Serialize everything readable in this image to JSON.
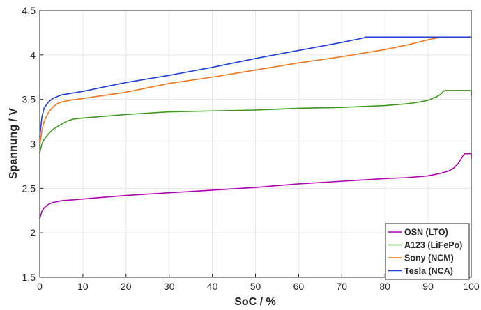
{
  "chart_data": {
    "type": "line",
    "xlabel": "SoC / %",
    "ylabel": "Spannung / V",
    "xlim": [
      0,
      100
    ],
    "ylim": [
      1.5,
      4.5
    ],
    "xticks": [
      "0",
      "10",
      "20",
      "30",
      "40",
      "50",
      "60",
      "70",
      "80",
      "90",
      "100"
    ],
    "yticks": [
      "1.5",
      "2",
      "2.5",
      "3",
      "3.5",
      "4",
      "4.5"
    ],
    "grid": true,
    "legend_position": "bottom-right",
    "series": [
      {
        "name": "OSN (LTO)",
        "color": "#b300b3",
        "x": [
          0,
          0.5,
          1,
          2,
          3,
          5,
          10,
          20,
          30,
          40,
          50,
          60,
          70,
          80,
          85,
          90,
          93,
          95,
          96,
          97,
          98,
          98.5,
          99.5,
          99.8,
          100,
          100
        ],
        "y": [
          2.16,
          2.24,
          2.28,
          2.32,
          2.34,
          2.36,
          2.38,
          2.42,
          2.45,
          2.48,
          2.51,
          2.55,
          2.58,
          2.61,
          2.62,
          2.64,
          2.67,
          2.7,
          2.73,
          2.78,
          2.86,
          2.89,
          2.89,
          2.89,
          2.89,
          2.84
        ]
      },
      {
        "name": "A123 (LiFePo)",
        "color": "#3a9a1a",
        "x": [
          0,
          0.5,
          1,
          2,
          3,
          5,
          6.5,
          8,
          10,
          20,
          30,
          40,
          50,
          60,
          70,
          80,
          85,
          88,
          90,
          92,
          93,
          93.5,
          94,
          98,
          99.5,
          100,
          100
        ],
        "y": [
          2.9,
          3.0,
          3.05,
          3.11,
          3.16,
          3.22,
          3.26,
          3.28,
          3.29,
          3.33,
          3.36,
          3.37,
          3.38,
          3.4,
          3.41,
          3.43,
          3.45,
          3.47,
          3.49,
          3.53,
          3.56,
          3.59,
          3.6,
          3.6,
          3.6,
          3.6,
          3.54
        ]
      },
      {
        "name": "Sony (NCM)",
        "color": "#f0761a",
        "x": [
          0,
          0.5,
          1,
          2,
          3,
          4,
          5,
          7,
          10,
          20,
          30,
          40,
          50,
          60,
          70,
          80,
          85,
          90,
          92,
          93,
          100
        ],
        "y": [
          2.98,
          3.15,
          3.25,
          3.35,
          3.41,
          3.45,
          3.47,
          3.49,
          3.51,
          3.58,
          3.68,
          3.75,
          3.83,
          3.91,
          3.98,
          4.06,
          4.11,
          4.17,
          4.19,
          4.2,
          4.2
        ]
      },
      {
        "name": "Tesla (NCA)",
        "color": "#1f3fd6",
        "x": [
          0,
          0.5,
          1,
          2,
          3,
          4,
          5,
          10,
          20,
          30,
          40,
          50,
          60,
          70,
          75,
          75.5,
          100
        ],
        "y": [
          3.08,
          3.3,
          3.4,
          3.47,
          3.51,
          3.53,
          3.55,
          3.59,
          3.69,
          3.77,
          3.86,
          3.96,
          4.05,
          4.14,
          4.19,
          4.2,
          4.2
        ]
      }
    ]
  }
}
